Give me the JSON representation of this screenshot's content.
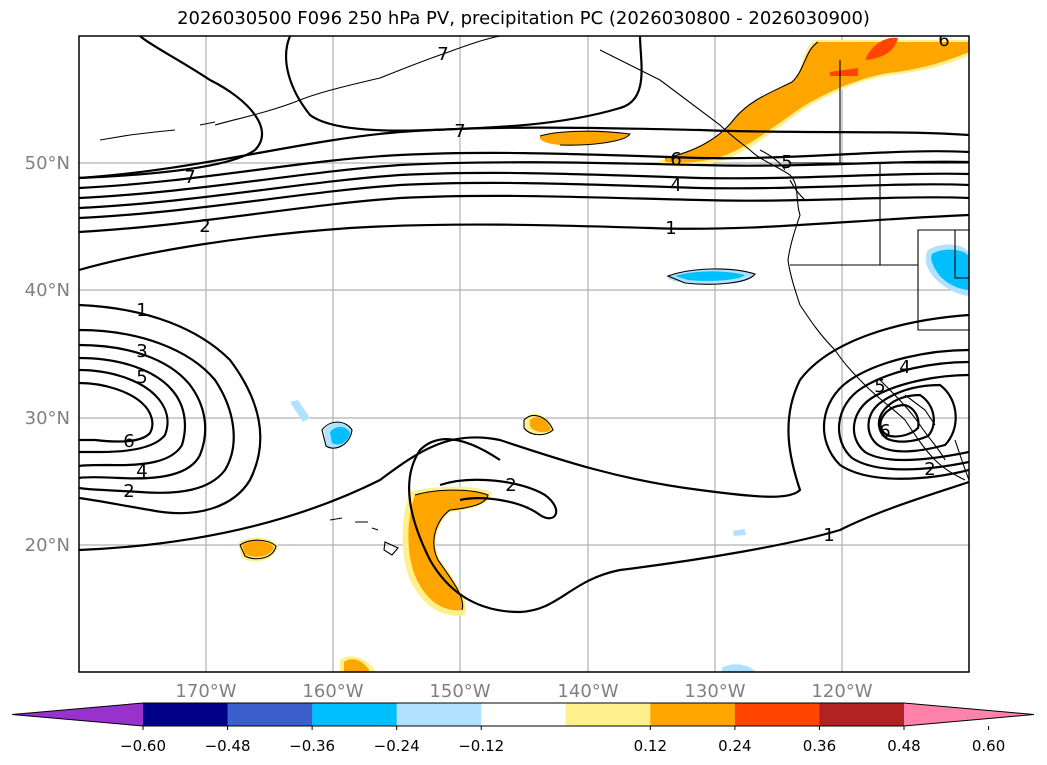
{
  "title": "2026030500 F096 250 hPa PV, precipitation PC (2026030800 - 2026030900)",
  "map": {
    "projection": "PlateCarree",
    "lon_range": [
      -180,
      -110
    ],
    "lat_range": [
      10,
      60
    ],
    "lat_ticks": [
      "50°N",
      "40°N",
      "30°N",
      "20°N"
    ],
    "lon_ticks": [
      "170°W",
      "160°W",
      "150°W",
      "140°W",
      "130°W",
      "120°W"
    ],
    "gridlines": true
  },
  "pv_contour_labels": [
    "7",
    "7",
    "7",
    "2",
    "6",
    "5",
    "4",
    "1",
    "1",
    "3",
    "5",
    "6",
    "4",
    "2",
    "2",
    "1",
    "4",
    "5",
    "6",
    "2",
    "6"
  ],
  "colorbar": {
    "extend": "both",
    "tick_labels": [
      "−0.60",
      "−0.48",
      "−0.36",
      "−0.24",
      "−0.12",
      "0.12",
      "0.24",
      "0.36",
      "0.48",
      "0.60"
    ],
    "colors": [
      "#9932cc",
      "#00008b",
      "#3a5fcd",
      "#00bfff",
      "#b0e2ff",
      "#ffffff",
      "#fff08c",
      "#ffa500",
      "#ff4500",
      "#b22222",
      "#ff82ab"
    ]
  }
}
